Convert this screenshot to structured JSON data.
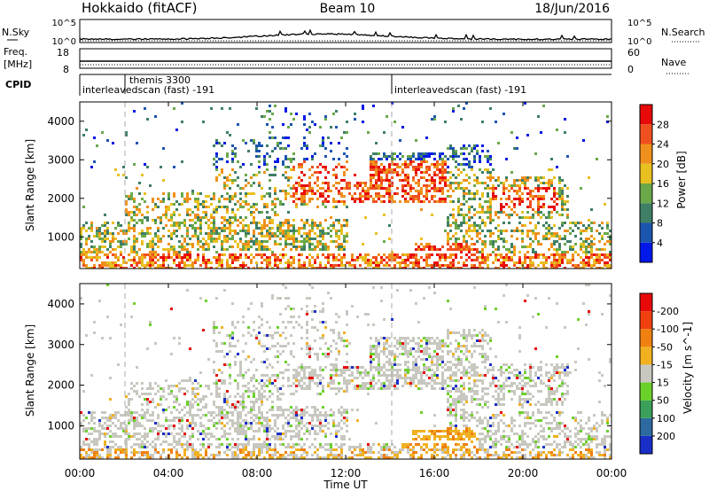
{
  "header": {
    "title_left": "Hokkaido (fitACF)",
    "title_center": "Beam 10",
    "title_right": "18/Jun/2016"
  },
  "strip_nsky": {
    "left_label": "N.Sky",
    "right_label": "N.Search",
    "ticks_left": [
      "10^5",
      "10^0"
    ],
    "ticks_right": [
      "10^5",
      "10^0"
    ]
  },
  "strip_freq": {
    "left_label_1": "Freq.",
    "left_label_2": "[MHz]",
    "right_label": "Nave",
    "ticks_left": [
      "18",
      "8"
    ],
    "ticks_right": [
      "60",
      "0"
    ]
  },
  "strip_cpid": {
    "label": "CPID",
    "entries": [
      "themis 3300",
      "interleavedscan (fast) -191",
      "interleavedscan (fast) -191"
    ]
  },
  "x_axis": {
    "title": "Time UT",
    "ticks": [
      "00:00",
      "04:00",
      "08:00",
      "12:00",
      "16:00",
      "20:00",
      "00:00"
    ]
  },
  "chart_data": [
    {
      "type": "heatmap",
      "name": "power",
      "xlabel": "Time UT",
      "ylabel": "Slant Range [km]",
      "xlim": [
        0,
        24
      ],
      "ylim": [
        180,
        4500
      ],
      "yticks": [
        1000,
        2000,
        3000,
        4000
      ],
      "ytick_labels": [
        "1000",
        "2000",
        "3000",
        "4000"
      ],
      "colorbar": {
        "label": "Power [dB]",
        "ticks": [
          "4",
          "8",
          "12",
          "16",
          "20",
          "24",
          "28"
        ],
        "colors": [
          "#0018e8",
          "#1c55b0",
          "#3f7f66",
          "#6aa84a",
          "#e8c020",
          "#f0901c",
          "#f05020",
          "#e80a0a"
        ]
      }
    },
    {
      "type": "heatmap",
      "name": "velocity",
      "xlabel": "Time UT",
      "ylabel": "Slant Range [km]",
      "xlim": [
        0,
        24
      ],
      "ylim": [
        180,
        4500
      ],
      "yticks": [
        1000,
        2000,
        3000,
        4000
      ],
      "ytick_labels": [
        "1000",
        "2000",
        "3000",
        "4000"
      ],
      "colorbar": {
        "label": "Velocity [m s^-1]",
        "ticks": [
          "200",
          "100",
          "50",
          "15",
          "-15",
          "-50",
          "-100",
          "-200"
        ],
        "colors": [
          "#1a2ec8",
          "#2c6aa0",
          "#3aa05a",
          "#6cd02a",
          "#c8c8c0",
          "#f0b020",
          "#f08010",
          "#f04010",
          "#e80a0a"
        ]
      }
    }
  ]
}
